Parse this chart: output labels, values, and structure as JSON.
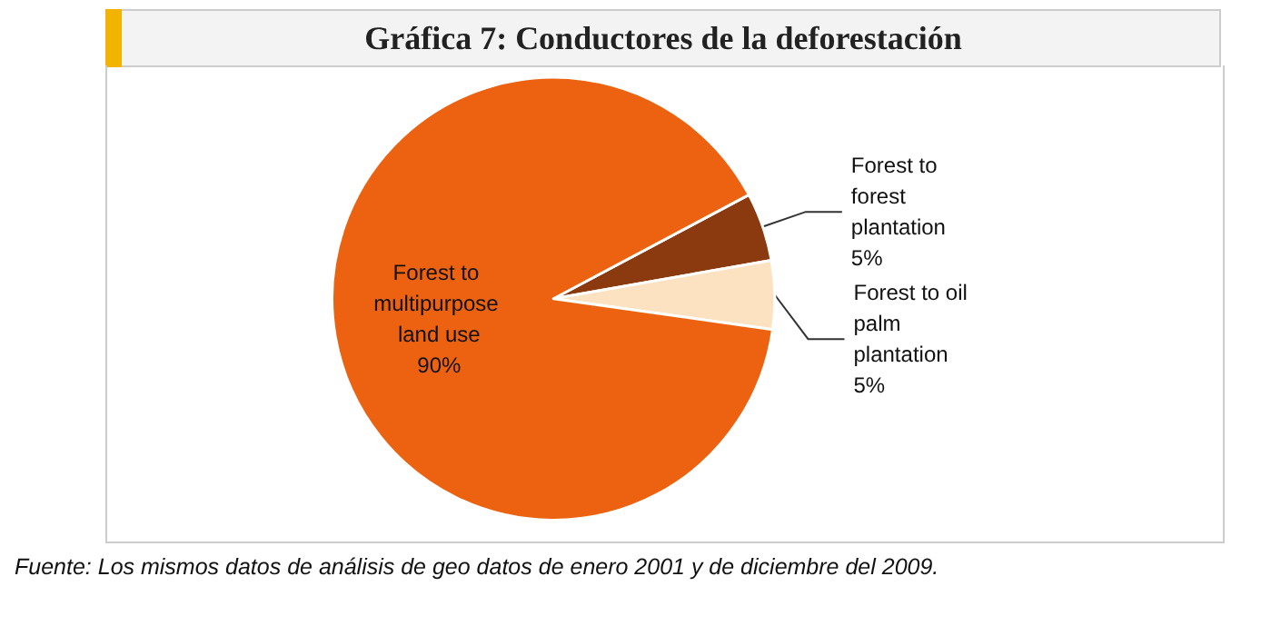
{
  "chart_data": {
    "type": "pie",
    "title": "Gráfica 7: Conductores de la deforestación",
    "categories": [
      "Forest to forest plantation",
      "Forest to oil palm plantation",
      "Forest to multipurpose land use"
    ],
    "values": [
      5,
      5,
      90
    ],
    "colors": [
      "#8b3a10",
      "#fde2c2",
      "#ec6210"
    ],
    "value_labels": [
      "5%",
      "5%",
      "90%"
    ],
    "legend": false,
    "annotations": [
      "Fuente: Los mismos datos de análisis de geo datos de enero 2001 y de diciembre del 2009."
    ]
  }
}
